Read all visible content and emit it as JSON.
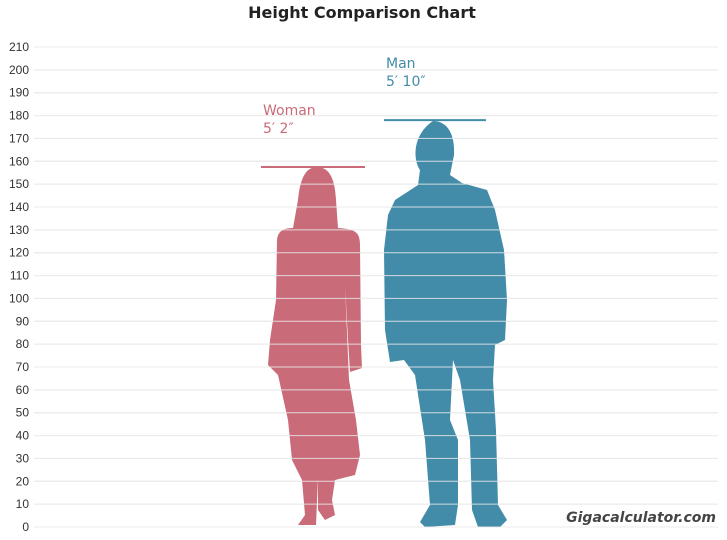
{
  "chart_data": {
    "type": "bar",
    "title": "Height Comparison Chart",
    "xlabel": "",
    "ylabel": "",
    "ylim": [
      0,
      210
    ],
    "yticks": [
      0,
      10,
      20,
      30,
      40,
      50,
      60,
      70,
      80,
      90,
      100,
      110,
      120,
      130,
      140,
      150,
      160,
      170,
      180,
      190,
      200,
      210
    ],
    "grid": true,
    "series": [
      {
        "name": "Woman",
        "label": "5′ 2″",
        "value": 157.5,
        "color": "#c96b78"
      },
      {
        "name": "Man",
        "label": "5′ 10″",
        "value": 178,
        "color": "#428ca9"
      }
    ]
  },
  "watermark": "Gigacalculator.com"
}
